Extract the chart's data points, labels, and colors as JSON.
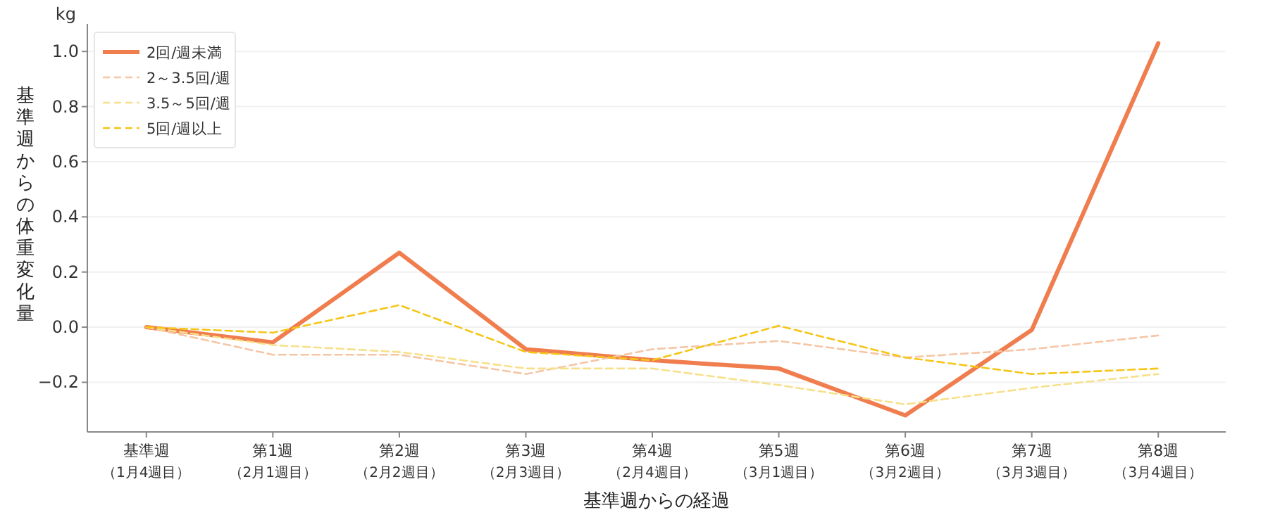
{
  "chart_data": {
    "type": "line",
    "xlabel": "基準週からの経過",
    "ylabel": "基準週からの体重変化量",
    "annotations": [
      "kg"
    ],
    "categories": [
      "基準週（1月4週目）",
      "第1週（2月1週目）",
      "第2週（2月2週目）",
      "第3週（2月3週目）",
      "第4週（2月4週目）",
      "第5週（3月1週目）",
      "第6週（3月2週目）",
      "第7週（3月3週目）",
      "第8週（3月4週目）"
    ],
    "series": [
      {
        "name": "2回/週未満",
        "color": "#f07d4e",
        "line_style": "solid",
        "values": [
          0.0,
          -0.055,
          0.27,
          -0.08,
          -0.12,
          -0.15,
          -0.32,
          -0.01,
          1.03
        ]
      },
      {
        "name": "2～3.5回/週",
        "color": "#f5c6a5",
        "line_style": "dashed",
        "values": [
          0.0,
          -0.1,
          -0.1,
          -0.17,
          -0.08,
          -0.05,
          -0.11,
          -0.08,
          -0.03
        ]
      },
      {
        "name": "3.5～5回/週",
        "color": "#f7e08a",
        "line_style": "dashed",
        "values": [
          0.0,
          -0.065,
          -0.09,
          -0.15,
          -0.15,
          -0.21,
          -0.28,
          -0.22,
          -0.17
        ]
      },
      {
        "name": "5回/週以上",
        "color": "#f5c518",
        "line_style": "dashed",
        "values": [
          0.0,
          -0.02,
          0.08,
          -0.09,
          -0.12,
          0.005,
          -0.11,
          -0.17,
          -0.15
        ]
      }
    ],
    "ylim": [
      -0.38,
      1.1
    ],
    "yticks": [
      {
        "value": -0.2,
        "label": "−0.2"
      },
      {
        "value": 0,
        "label": "0.0"
      },
      {
        "value": 0.2,
        "label": "0.2"
      },
      {
        "value": 0.4,
        "label": "0.4"
      },
      {
        "value": 0.6,
        "label": "0.6"
      },
      {
        "value": 0.8,
        "label": "0.8"
      },
      {
        "value": 1.0,
        "label": "1.0"
      }
    ],
    "grid": "y",
    "legend": "top left"
  }
}
